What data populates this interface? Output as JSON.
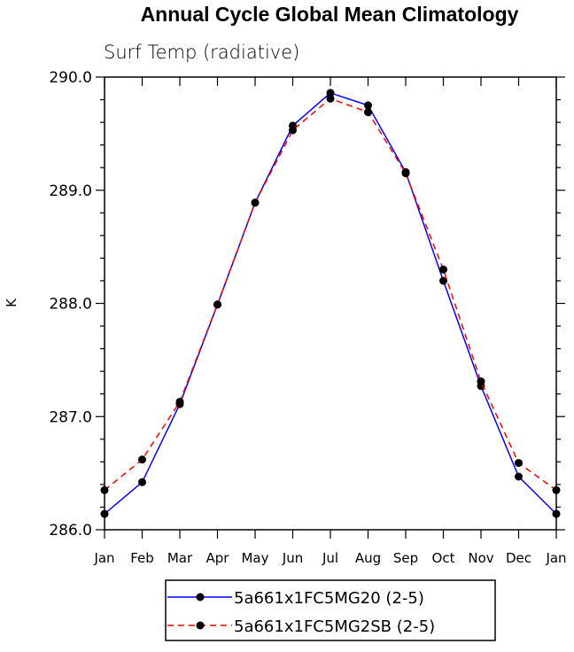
{
  "chart_data": {
    "type": "line",
    "title": "Annual Cycle Global Mean Climatology",
    "subtitle": "Surf Temp (radiative)",
    "ylabel": "K",
    "xlabel": "",
    "categories": [
      "Jan",
      "Feb",
      "Mar",
      "Apr",
      "May",
      "Jun",
      "Jul",
      "Aug",
      "Sep",
      "Oct",
      "Nov",
      "Dec",
      "Jan"
    ],
    "ylim": [
      286.0,
      290.0
    ],
    "yticks": [
      "286.0",
      "287.0",
      "288.0",
      "289.0",
      "290.0"
    ],
    "grid": false,
    "legend_position": "bottom-center",
    "series": [
      {
        "name": "5a661x1FC5MG20 (2-5)",
        "color": "#0000ff",
        "line_style": "solid",
        "marker": "filled-circle",
        "values": [
          286.14,
          286.42,
          287.11,
          287.99,
          288.89,
          289.57,
          289.86,
          289.75,
          289.16,
          288.2,
          287.27,
          286.47,
          286.14
        ]
      },
      {
        "name": "5a661x1FC5MG2SB (2-5)",
        "color": "#ff0000",
        "line_style": "dashed",
        "marker": "filled-circle",
        "values": [
          286.35,
          286.62,
          287.13,
          287.99,
          288.89,
          289.53,
          289.81,
          289.69,
          289.15,
          288.3,
          287.31,
          286.59,
          286.35
        ]
      }
    ]
  }
}
